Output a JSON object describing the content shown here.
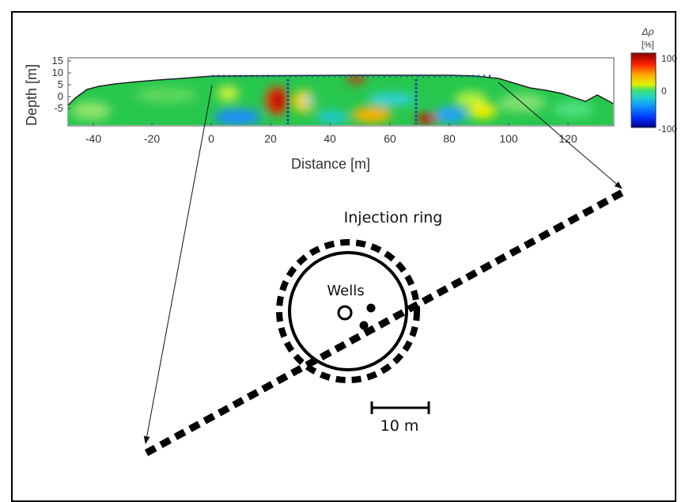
{
  "section": {
    "axis": {
      "ylabel": "Depth [m]",
      "xlabel": "Distance [m]",
      "yticks": [
        "15",
        "10",
        "5",
        "0",
        "-5"
      ],
      "xticks": [
        "-40",
        "-20",
        "0",
        "20",
        "40",
        "60",
        "80",
        "100",
        "120"
      ]
    },
    "colorbar": {
      "title_symbol": "Δρ",
      "title_unit": "[%]",
      "labels": [
        "100",
        "0",
        "-100"
      ]
    }
  },
  "diagram": {
    "injection_label": "Injection ring",
    "wells_label": "Wells",
    "scale_label": "10 m"
  },
  "colors": {
    "frame": "#000000",
    "section_fill": "#27c74e",
    "text": "#111111"
  }
}
